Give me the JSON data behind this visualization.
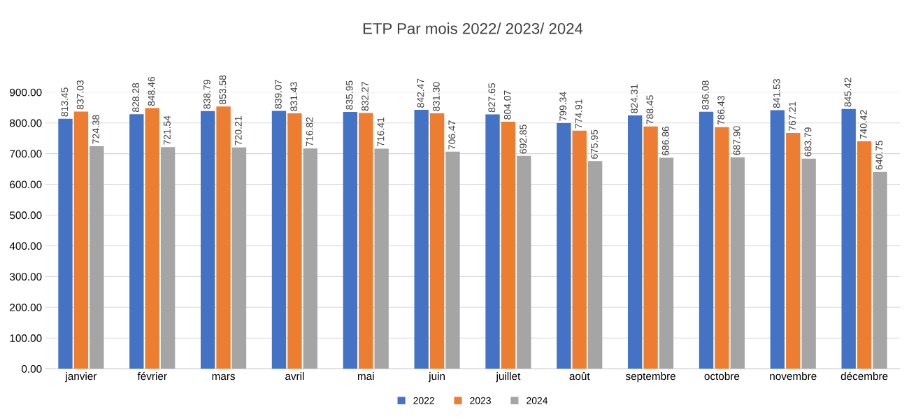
{
  "chart_data": {
    "type": "bar",
    "title": "ETP Par mois 2022/ 2023/ 2024",
    "categories": [
      "janvier",
      "février",
      "mars",
      "avril",
      "mai",
      "juin",
      "juillet",
      "août",
      "septembre",
      "octobre",
      "novembre",
      "décembre"
    ],
    "series": [
      {
        "name": "2022",
        "color": "#4472c4",
        "values": [
          813.45,
          828.28,
          838.79,
          839.07,
          835.95,
          842.47,
          827.65,
          799.34,
          824.31,
          836.08,
          841.53,
          845.42
        ],
        "value_labels": [
          "813.45",
          "828.28",
          "838.79",
          "839.07",
          "835.95",
          "842.47",
          "827.65",
          "799.34",
          "824.31",
          "836.08",
          "841.53",
          "845.42"
        ]
      },
      {
        "name": "2023",
        "color": "#ed7d31",
        "values": [
          837.03,
          848.46,
          853.58,
          831.43,
          832.27,
          831.3,
          804.07,
          774.91,
          788.45,
          786.43,
          767.21,
          740.42
        ],
        "value_labels": [
          "837.03",
          "848.46",
          "853.58",
          "831.43",
          "832.27",
          "831.30",
          "804.07",
          "774.91",
          "788.45",
          "786.43",
          "767.21",
          "740.42"
        ]
      },
      {
        "name": "2024",
        "color": "#a5a5a5",
        "values": [
          724.38,
          721.54,
          720.21,
          716.82,
          716.41,
          706.47,
          692.85,
          675.95,
          686.86,
          687.9,
          683.79,
          640.75
        ],
        "value_labels": [
          "724.38",
          "721.54",
          "720.21",
          "716.82",
          "716.41",
          "706.47",
          "692.85",
          "675.95",
          "686.86",
          "687.90",
          "683.79",
          "640.75"
        ]
      }
    ],
    "ylim": [
      0,
      900
    ],
    "yticks": [
      {
        "value": 0,
        "label": "0.00"
      },
      {
        "value": 100,
        "label": "100.00"
      },
      {
        "value": 200,
        "label": "200.00"
      },
      {
        "value": 300,
        "label": "300.00"
      },
      {
        "value": 400,
        "label": "400.00"
      },
      {
        "value": 500,
        "label": "500.00"
      },
      {
        "value": 600,
        "label": "600.00"
      },
      {
        "value": 700,
        "label": "700.00"
      },
      {
        "value": 800,
        "label": "800.00"
      },
      {
        "value": 900,
        "label": "900.00"
      }
    ],
    "grid": "y",
    "legend": "bottom"
  }
}
